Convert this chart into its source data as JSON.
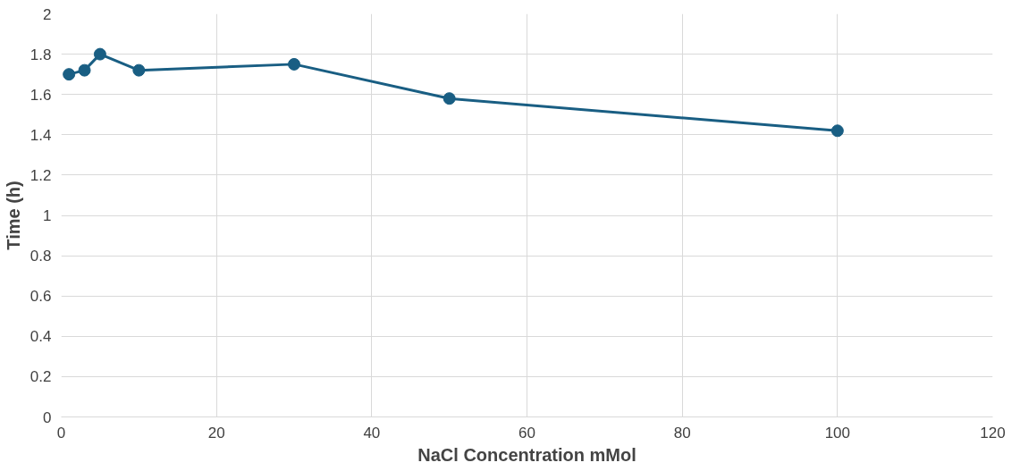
{
  "chart_data": {
    "type": "line",
    "xlabel": "NaCl Concentration mMol",
    "ylabel": "Time (h)",
    "x": [
      1,
      3,
      5,
      10,
      30,
      50,
      100
    ],
    "series": [
      {
        "color": "#195e83",
        "values": [
          1.7,
          1.72,
          1.8,
          1.72,
          1.75,
          1.58,
          1.42
        ]
      }
    ],
    "xlim": [
      0,
      120
    ],
    "xticks": [
      0,
      20,
      40,
      60,
      80,
      100,
      120
    ],
    "ylim": [
      0,
      2
    ],
    "yticks": [
      0,
      0.2,
      0.4,
      0.6,
      0.8,
      1,
      1.2,
      1.4,
      1.6,
      1.8,
      2
    ],
    "grid": true,
    "marker": "circle",
    "line_style": "solid"
  }
}
